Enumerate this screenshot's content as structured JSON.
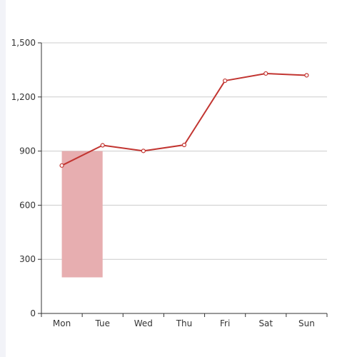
{
  "chart_data": {
    "type": "line",
    "categories": [
      "Mon",
      "Tue",
      "Wed",
      "Thu",
      "Fri",
      "Sat",
      "Sun"
    ],
    "series": [
      {
        "type": "line",
        "values": [
          820,
          932,
          901,
          934,
          1290,
          1330,
          1320
        ]
      }
    ],
    "marked_area": {
      "category": "Mon",
      "ymin": 200,
      "ymax": 900
    },
    "yticks": [
      "0",
      "300",
      "600",
      "900",
      "1,200",
      "1,500"
    ],
    "ylim": [
      0,
      1500
    ],
    "grid": true,
    "legend": false,
    "colors": {
      "line": "#c23531",
      "area": "#e7aeb0",
      "grid": "#cccccc",
      "axis": "#333333"
    }
  }
}
